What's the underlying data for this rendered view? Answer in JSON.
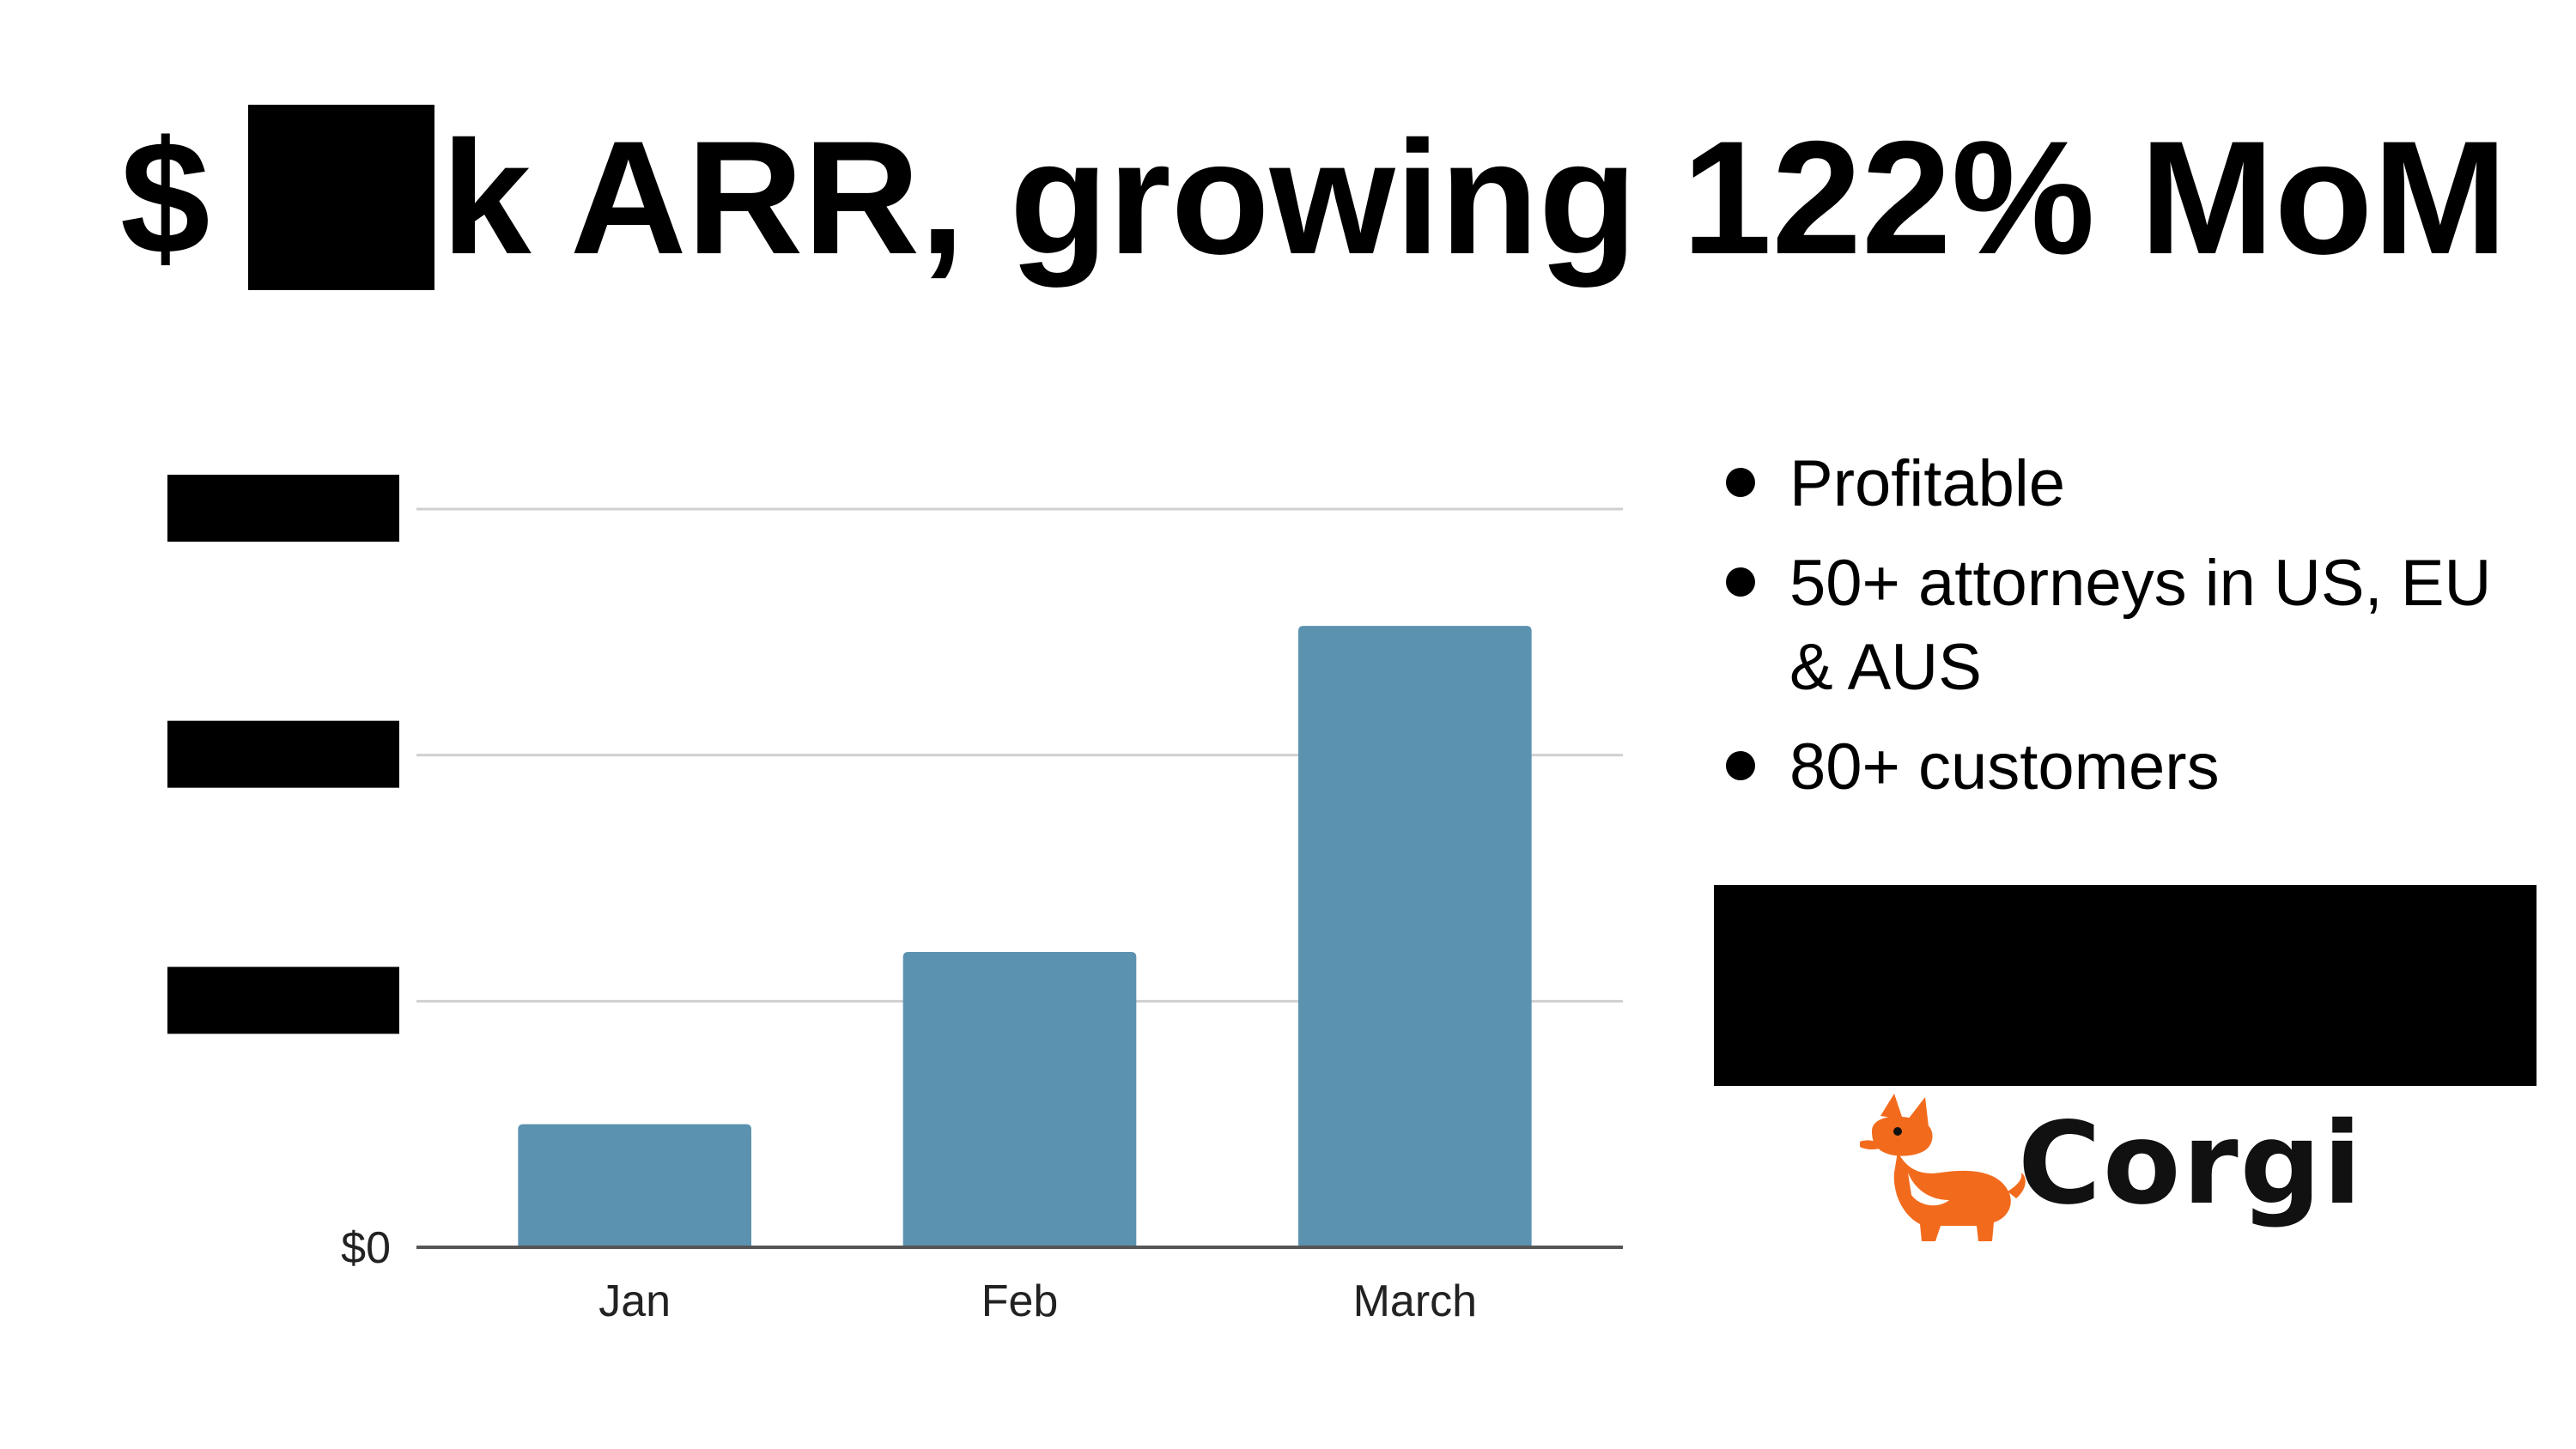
{
  "slide": {
    "title_prefix": "$",
    "title_suffix": "k ARR, growing 122% MoM",
    "bullets": [
      "Profitable",
      "50+ attorneys in US, EU & AUS",
      "80+ customers"
    ],
    "logo_text": "Corgi",
    "colors": {
      "bar": "#5b92b0",
      "logo_orange": "#f26b1d",
      "gridline": "#d0d0d0",
      "axis": "#555555"
    }
  },
  "chart_data": {
    "type": "bar",
    "categories": [
      "Jan",
      "Feb",
      "March"
    ],
    "values": [
      1,
      2.4,
      5.05
    ],
    "ylim": [
      0,
      6
    ],
    "yticks": [
      0,
      2,
      4,
      6
    ],
    "ytick_labels": [
      "$0",
      "",
      "",
      ""
    ],
    "ytick_labels_redacted": [
      false,
      true,
      true,
      true
    ],
    "grid": true,
    "bar_color": "#5b92b0"
  }
}
